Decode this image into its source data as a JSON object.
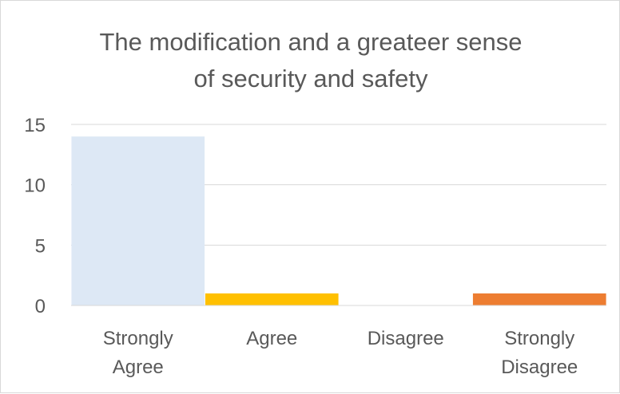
{
  "chart_data": {
    "type": "bar",
    "title_lines": [
      "The modification and a greateer sense",
      "of security and safety"
    ],
    "categories": [
      [
        "Strongly",
        "Agree"
      ],
      [
        "Agree"
      ],
      [
        "Disagree"
      ],
      [
        "Strongly",
        "Disagree"
      ]
    ],
    "values": [
      14,
      1,
      0,
      1
    ],
    "colors": [
      "#dde8f5",
      "#ffc000",
      "#a5a5a5",
      "#ed7d31"
    ],
    "ylim": [
      0,
      15
    ],
    "yticks": [
      0,
      5,
      10,
      15
    ],
    "xlabel": "",
    "ylabel": "",
    "grid": true,
    "legend": "none"
  }
}
